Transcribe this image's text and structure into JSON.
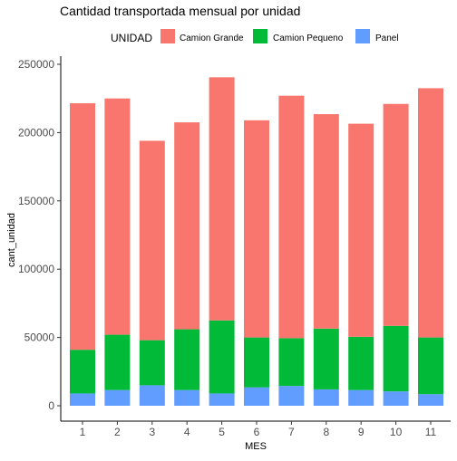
{
  "chart_data": {
    "type": "bar",
    "stacked": true,
    "title": "Cantidad transportada mensual por unidad",
    "xlabel": "MES",
    "ylabel": "cant_unidad",
    "categories": [
      "1",
      "2",
      "3",
      "4",
      "5",
      "6",
      "7",
      "8",
      "9",
      "10",
      "11"
    ],
    "ylim": [
      0,
      250000
    ],
    "yticks": [
      0,
      50000,
      100000,
      150000,
      200000,
      250000
    ],
    "ytick_labels": [
      "0",
      "50000",
      "100000",
      "150000",
      "200000",
      "250000"
    ],
    "grid": false,
    "legend": {
      "title": "UNIDAD",
      "position": "top"
    },
    "series": [
      {
        "name": "Panel",
        "color": "#619CFF",
        "values": [
          9000,
          11500,
          15000,
          11500,
          9000,
          13500,
          14500,
          12000,
          11500,
          10500,
          8500
        ]
      },
      {
        "name": "Camion Pequeno",
        "color": "#00BA38",
        "values": [
          32000,
          40500,
          33000,
          44500,
          53500,
          36500,
          35000,
          44500,
          39000,
          48000,
          41500
        ]
      },
      {
        "name": "Camion Grande",
        "color": "#F8766D",
        "values": [
          180500,
          173000,
          146000,
          151500,
          178000,
          159000,
          177500,
          157000,
          156000,
          162500,
          182500
        ]
      }
    ],
    "legend_order": [
      "Camion Grande",
      "Camion Pequeno",
      "Panel"
    ]
  }
}
